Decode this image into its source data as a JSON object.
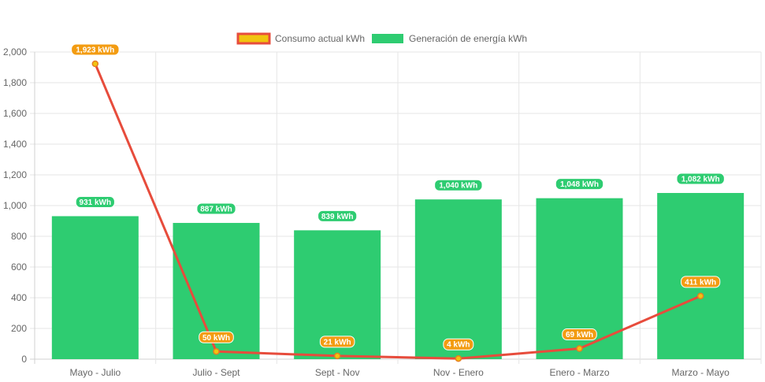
{
  "chart_data": {
    "type": "bar",
    "categories": [
      "Mayo - Julio",
      "Julio - Sept",
      "Sept - Nov",
      "Nov - Enero",
      "Enero - Marzo",
      "Marzo - Mayo"
    ],
    "series": [
      {
        "name": "Consumo actual kWh",
        "type": "line",
        "values": [
          1923,
          50,
          21,
          4,
          69,
          411
        ],
        "labels": [
          "1,923 kWh",
          "50 kWh",
          "21 kWh",
          "4 kWh",
          "69 kWh",
          "411 kWh"
        ],
        "color": "#e74c3c",
        "fill": "#f1c40f",
        "label_color": "#f39c12"
      },
      {
        "name": "Generación de energía kWh",
        "type": "bar",
        "values": [
          931,
          887,
          839,
          1040,
          1048,
          1082
        ],
        "labels": [
          "931 kWh",
          "887 kWh",
          "839 kWh",
          "1,040 kWh",
          "1,048 kWh",
          "1,082 kWh"
        ],
        "color": "#2ecc71"
      }
    ],
    "ylim": [
      0,
      2000
    ],
    "yticks": [
      "0",
      "200",
      "400",
      "600",
      "800",
      "1,000",
      "1,200",
      "1,400",
      "1,600",
      "1,800",
      "2,000"
    ],
    "grid": true,
    "legend": "top-center"
  }
}
